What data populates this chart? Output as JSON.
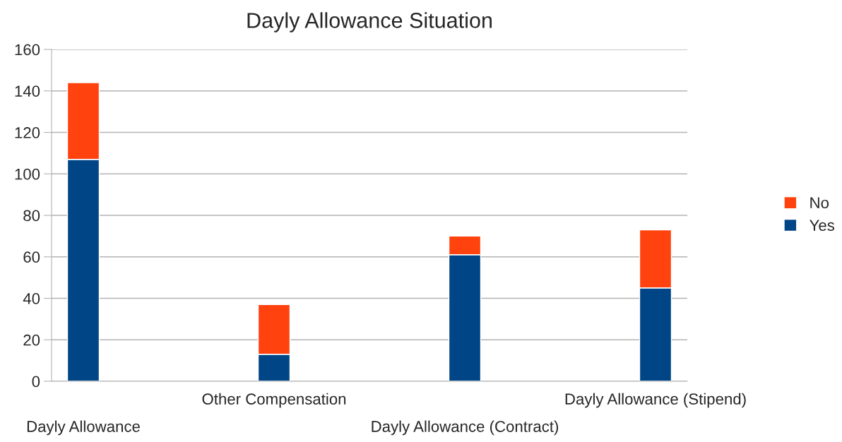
{
  "chart_data": {
    "type": "bar",
    "title": "Dayly Allowance Situation",
    "stacked": true,
    "categories": [
      "Dayly Allowance",
      null,
      null,
      "Other Compensation",
      null,
      null,
      "Dayly Allowance (Contract)",
      null,
      null,
      "Dayly Allowance (Stipend)"
    ],
    "series": [
      {
        "name": "Yes",
        "color": "#004586",
        "values": [
          107,
          null,
          null,
          13,
          null,
          null,
          61,
          null,
          null,
          45
        ]
      },
      {
        "name": "No",
        "color": "#ff420e",
        "values": [
          37,
          null,
          null,
          24,
          null,
          null,
          9,
          null,
          null,
          28
        ]
      }
    ],
    "ylim": [
      0,
      160
    ],
    "yticks": [
      0,
      20,
      40,
      60,
      80,
      100,
      120,
      140,
      160
    ],
    "grid": "y",
    "legend": "right"
  }
}
